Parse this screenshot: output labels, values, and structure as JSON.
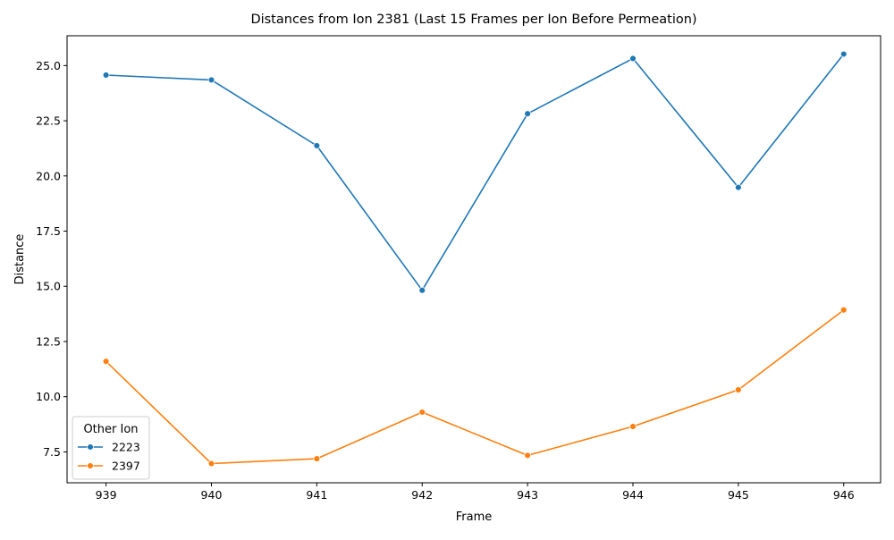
{
  "chart_data": {
    "type": "line",
    "title": "Distances from Ion 2381 (Last 15 Frames per Ion Before Permeation)",
    "xlabel": "Frame",
    "ylabel": "Distance",
    "x": [
      939,
      940,
      941,
      942,
      943,
      944,
      945,
      946
    ],
    "x_ticks": [
      "939",
      "940",
      "941",
      "942",
      "943",
      "944",
      "945",
      "946"
    ],
    "y_ticks": [
      "7.5",
      "10.0",
      "12.5",
      "15.0",
      "17.5",
      "20.0",
      "22.5",
      "25.0"
    ],
    "y_tick_values": [
      7.5,
      10.0,
      12.5,
      15.0,
      17.5,
      20.0,
      22.5,
      25.0
    ],
    "xlim": [
      938.63,
      946.35
    ],
    "ylim": [
      6.1,
      26.35
    ],
    "grid": false,
    "legend": {
      "title": "Other Ion",
      "placement": "lower-left"
    },
    "series": [
      {
        "name": "2223",
        "color": "#1f77b4",
        "marker": "circle",
        "values": [
          24.57,
          24.35,
          21.37,
          14.82,
          22.82,
          25.32,
          19.48,
          25.52
        ]
      },
      {
        "name": "2397",
        "color": "#ff7f0e",
        "marker": "circle",
        "values": [
          11.6,
          6.97,
          7.19,
          9.3,
          7.34,
          8.65,
          10.31,
          13.93
        ]
      }
    ]
  }
}
